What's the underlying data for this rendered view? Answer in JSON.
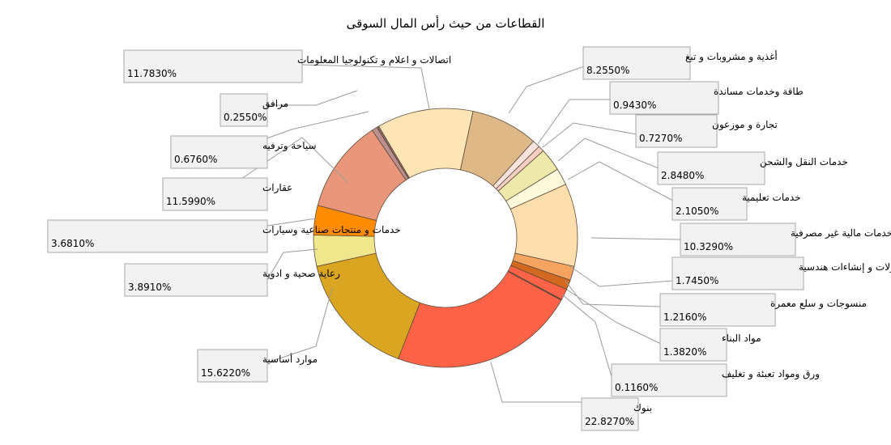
{
  "chart_data": {
    "type": "pie",
    "variant": "donut",
    "title": "القطاعات من حيث رأس المال السوقى",
    "series": [
      {
        "name": "أغذية و مشروبات و تبغ",
        "value": 8.255,
        "label": "8.2550%",
        "color": "#deb887"
      },
      {
        "name": "طاقة وخدمات مساندة",
        "value": 0.943,
        "label": "0.9430%",
        "color": "#fbe4de"
      },
      {
        "name": "تجارة و موزعون",
        "value": 0.727,
        "label": "0.7270%",
        "color": "#f9cfc4"
      },
      {
        "name": "خدمات النقل والشحن",
        "value": 2.848,
        "label": "2.8480%",
        "color": "#eee8aa"
      },
      {
        "name": "خدمات تعليمية",
        "value": 2.105,
        "label": "2.1050%",
        "color": "#fffadc"
      },
      {
        "name": "خدمات مالية غير مصرفية",
        "value": 10.329,
        "label": "10.3290%",
        "color": "#ffdead"
      },
      {
        "name": "مقاولات و إنشاءات هندسية",
        "value": 1.745,
        "label": "1.7450%",
        "color": "#f4a460"
      },
      {
        "name": "منسوجات و سلع معمرة",
        "value": 1.216,
        "label": "1.2160%",
        "color": "#d2691e"
      },
      {
        "name": "مواد البناء",
        "value": 1.382,
        "label": "1.3820%",
        "color": "#ff6347"
      },
      {
        "name": "ورق ومواد تعبئة و تغليف",
        "value": 0.116,
        "label": "0.1160%",
        "color": "#8b4513"
      },
      {
        "name": "بنوك",
        "value": 22.827,
        "label": "22.8270%",
        "color": "#ff6347"
      },
      {
        "name": "موارد أساسية",
        "value": 15.622,
        "label": "15.6220%",
        "color": "#daa520"
      },
      {
        "name": "رعاية صحية و ادوية",
        "value": 3.891,
        "label": "3.8910%",
        "color": "#f0e68c"
      },
      {
        "name": "خدمات و منتجات صناعية وسيارات",
        "value": 3.681,
        "label": "3.6810%",
        "color": "#ff8c00"
      },
      {
        "name": "عقارات",
        "value": 11.599,
        "label": "11.5990%",
        "color": "#e9967a"
      },
      {
        "name": "سياحة وترفيه",
        "value": 0.676,
        "label": "0.6760%",
        "color": "#bc8f8f"
      },
      {
        "name": "مرافق",
        "value": 0.255,
        "label": "0.2550%",
        "color": "#8b6a6a"
      },
      {
        "name": "اتصالات و  اعلام و تكنولوجيا المعلومات",
        "value": 11.783,
        "label": "11.7830%",
        "color": "#ffe4b5"
      }
    ]
  }
}
